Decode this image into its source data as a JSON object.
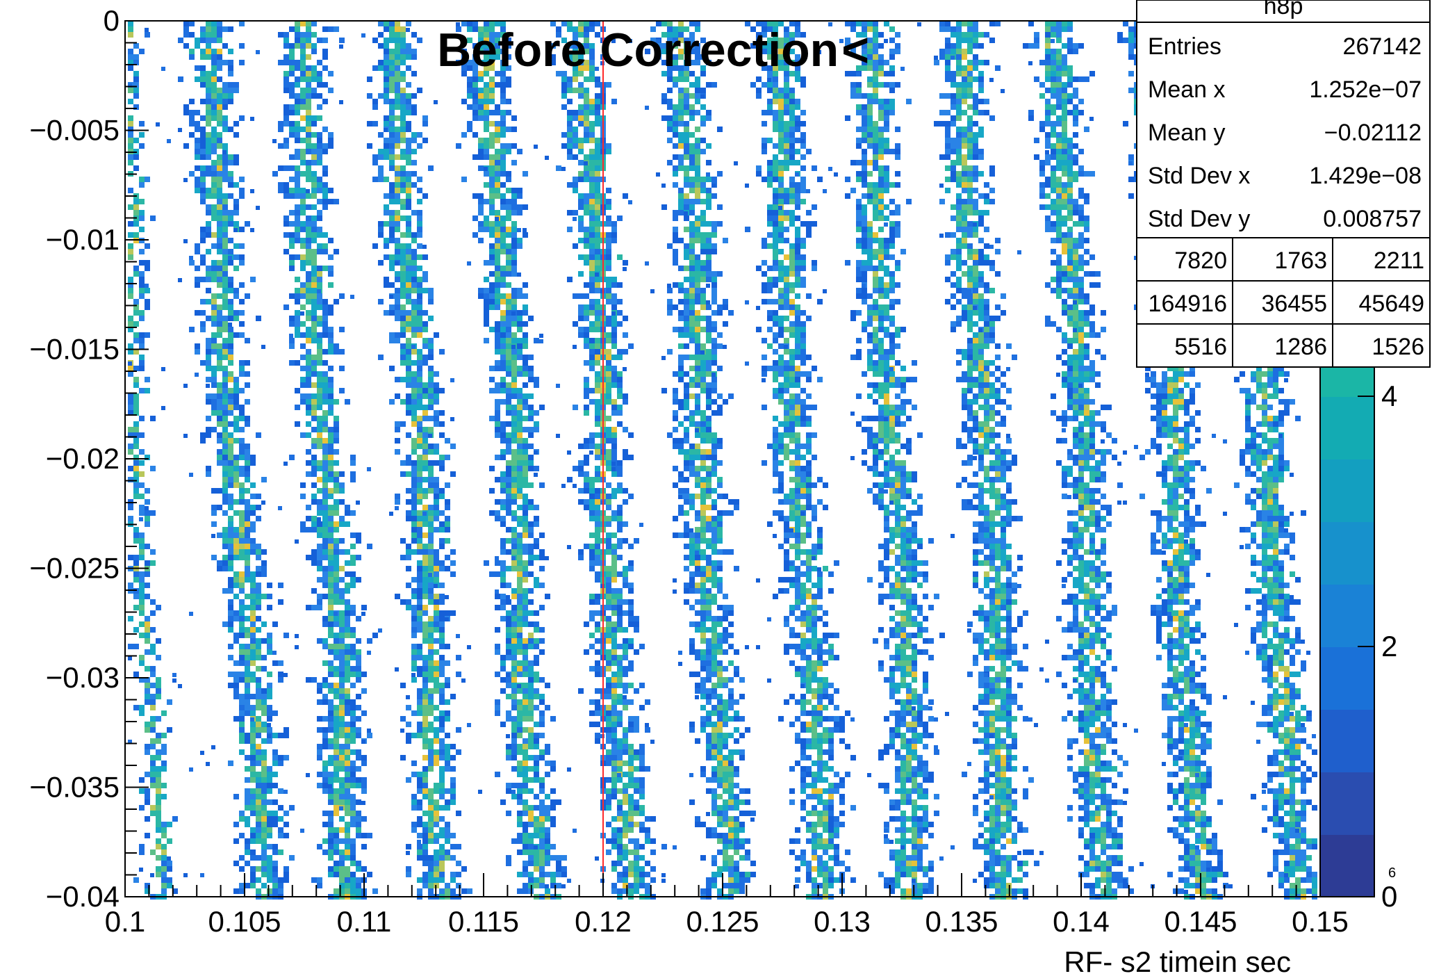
{
  "chart_data": {
    "type": "heatmap",
    "title": "Before Correction",
    "title_suffix": "<",
    "xlabel": "RF- s2 timein sec",
    "ylabel": "",
    "xlim": [
      0.1,
      0.15
    ],
    "ylim": [
      -0.04,
      0
    ],
    "x_ticks": [
      "0.1",
      "0.105",
      "0.11",
      "0.115",
      "0.12",
      "0.125",
      "0.13",
      "0.135",
      "0.14",
      "0.145",
      "0.15"
    ],
    "x_tick_values": [
      0.1,
      0.105,
      0.11,
      0.115,
      0.12,
      0.125,
      0.13,
      0.135,
      0.14,
      0.145,
      0.15
    ],
    "y_ticks": [
      "0",
      "−0.005",
      "−0.01",
      "−0.015",
      "−0.02",
      "−0.025",
      "−0.03",
      "−0.035",
      "−0.04"
    ],
    "y_tick_values": [
      0,
      -0.005,
      -0.01,
      -0.015,
      -0.02,
      -0.025,
      -0.03,
      -0.035,
      -0.04
    ],
    "cut_line_x": 0.12,
    "band_centers": [
      {
        "top": 0.1032,
        "bottom": 0.1058
      },
      {
        "top": 0.1072,
        "bottom": 0.1093
      },
      {
        "top": 0.1112,
        "bottom": 0.1132
      },
      {
        "top": 0.1151,
        "bottom": 0.1172
      },
      {
        "top": 0.119,
        "bottom": 0.121
      },
      {
        "top": 0.1231,
        "bottom": 0.1251
      },
      {
        "top": 0.127,
        "bottom": 0.1291
      },
      {
        "top": 0.131,
        "bottom": 0.133
      },
      {
        "top": 0.1349,
        "bottom": 0.1369
      },
      {
        "top": 0.1389,
        "bottom": 0.1409
      },
      {
        "top": 0.1428,
        "bottom": 0.1448
      },
      {
        "top": 0.1468,
        "bottom": 0.1488
      }
    ],
    "colorbar": {
      "min": 0,
      "max": 7,
      "ticks": [
        "0",
        "2",
        "4",
        "6"
      ],
      "tick_values": [
        0,
        2,
        4,
        6
      ],
      "corner_label": "6",
      "colors": [
        "#2d3c95",
        "#2a4db0",
        "#1f5fcc",
        "#1a71d8",
        "#1a82d6",
        "#1791cc",
        "#139fc0",
        "#13abb3",
        "#1bb6a6",
        "#35bb96",
        "#56be87",
        "#7bc17a"
      ]
    },
    "cell_colors": [
      "#1e6fe0",
      "#1560d8",
      "#2a83e6",
      "#17a7c6",
      "#2bb7a5",
      "#5bbf88",
      "#b9c75a",
      "#e6c23a"
    ]
  },
  "stats_box": {
    "name": "h8p",
    "rows": [
      {
        "label": "Entries",
        "value": "267142"
      },
      {
        "label": "Mean x",
        "value": "1.252e−07"
      },
      {
        "label": "Mean y",
        "value": "−0.02112"
      },
      {
        "label": "Std Dev x",
        "value": "1.429e−08"
      },
      {
        "label": "Std Dev y",
        "value": "0.008757"
      }
    ],
    "grid": [
      [
        "7820",
        "1763",
        "2211"
      ],
      [
        "164916",
        "36455",
        "45649"
      ],
      [
        "5516",
        "1286",
        "1526"
      ]
    ]
  }
}
